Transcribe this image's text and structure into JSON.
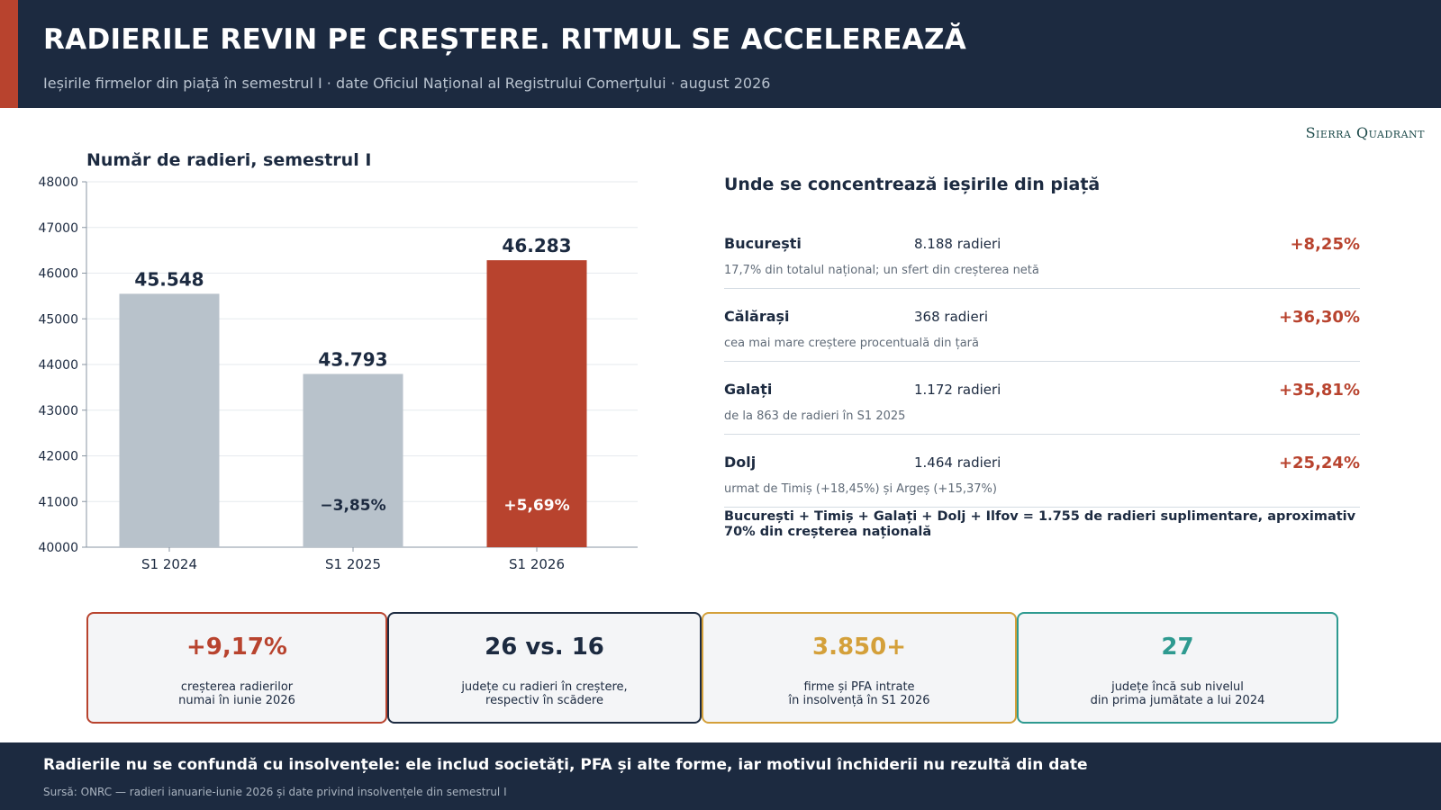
{
  "header": {
    "title": "RADIERILE REVIN PE CREȘTERE. RITMUL SE ACCELEREAZĂ",
    "subtitle": "Ieșirile firmelor din piață în semestrul I · date Oficiul Național al Registrului Comerțului · august 2026"
  },
  "brand": "Sierra Quadrant",
  "chart_data": {
    "type": "bar",
    "title": "Număr de radieri, semestrul I",
    "categories": [
      "S1 2024",
      "S1 2025",
      "S1 2026"
    ],
    "values": [
      45548,
      43793,
      46283
    ],
    "value_labels": [
      "45.548",
      "43.793",
      "46.283"
    ],
    "change_labels": [
      "",
      "−3,85%",
      "+5,69%"
    ],
    "ylim": [
      40000,
      48000
    ],
    "yticks": [
      40000,
      41000,
      42000,
      43000,
      44000,
      45000,
      46000,
      47000,
      48000
    ],
    "colors": [
      "#b8c2cb",
      "#b8c2cb",
      "#b8432e"
    ],
    "grid": true,
    "xlabel": "",
    "ylabel": ""
  },
  "panel": {
    "title": "Unde se concentrează ieșirile din piață",
    "regions": [
      {
        "name": "București",
        "count": "8.188 radieri",
        "change": "+8,25%",
        "note": "17,7% din totalul național; un sfert din creșterea netă"
      },
      {
        "name": "Călărași",
        "count": "368 radieri",
        "change": "+36,30%",
        "note": "cea mai mare creștere procentuală din țară"
      },
      {
        "name": "Galați",
        "count": "1.172 radieri",
        "change": "+35,81%",
        "note": "de la 863 de radieri în S1 2025"
      },
      {
        "name": "Dolj",
        "count": "1.464 radieri",
        "change": "+25,24%",
        "note": "urmat de Timiș (+18,45%) și Argeș (+15,37%)"
      }
    ],
    "summary": "București + Timiș + Galați + Dolj + Ilfov = 1.755 de radieri suplimentare, aproximativ 70% din creșterea națională"
  },
  "kpis": [
    {
      "value": "+9,17%",
      "label": "creșterea radierilor\nnumai în iunie 2026",
      "color": "#b8432e"
    },
    {
      "value": "26 vs. 16",
      "label": "județe cu radieri în creștere,\nrespectiv în scădere",
      "color": "#1c2a40"
    },
    {
      "value": "3.850+",
      "label": "firme și PFA intrate\nîn insolvență în S1 2026",
      "color": "#d4a03a"
    },
    {
      "value": "27",
      "label": "județe încă sub nivelul\ndin prima jumătate a lui 2024",
      "color": "#2e9a90"
    }
  ],
  "footer": {
    "main": "Radierile nu se confundă cu insolvențele: ele includ societăți, PFA și alte forme, iar motivul închiderii nu rezultă din date",
    "source": "Sursă: ONRC — radieri ianuarie-iunie 2026 și date privind insolvențele din semestrul I"
  }
}
